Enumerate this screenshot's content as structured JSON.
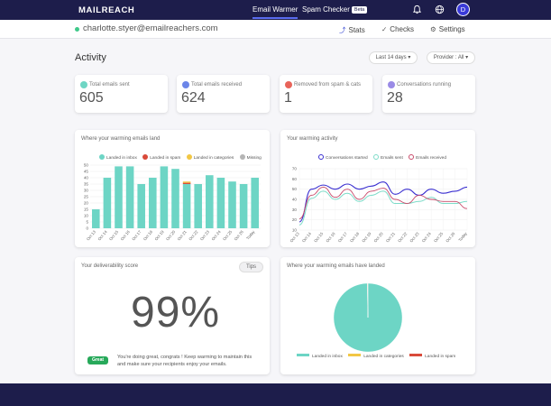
{
  "navbar": {
    "logo": "MAILREACH",
    "email_warmer": "Email Warmer",
    "spam_checker": "Spam Checker",
    "beta": "Beta",
    "avatar_initial": "D",
    "icons": [
      "bell-icon",
      "globe-icon"
    ]
  },
  "subheader": {
    "email": "charlotte.styer@emailreachers.com",
    "tabs": [
      {
        "label": "Stats",
        "icon": "stats-icon"
      },
      {
        "label": "Checks",
        "icon": "checks-icon"
      },
      {
        "label": "Settings",
        "icon": "gear-icon"
      }
    ]
  },
  "activity": {
    "title": "Activity",
    "range": "Last 14 days",
    "provider": "Provider : All"
  },
  "stats": [
    {
      "label": "Total emails sent",
      "value": "605",
      "color": "#6fd6c4"
    },
    {
      "label": "Total emails received",
      "value": "624",
      "color": "#6c86e8"
    },
    {
      "label": "Removed from spam & cats",
      "value": "1",
      "color": "#e8645a"
    },
    {
      "label": "Conversations running",
      "value": "28",
      "color": "#9a8be6"
    }
  ],
  "land_chart": {
    "title": "Where your warming emails land",
    "legend": [
      {
        "name": "Landed in inbox",
        "color": "#6dd5c5"
      },
      {
        "name": "Landed in spam",
        "color": "#d94a3a"
      },
      {
        "name": "Landed in categories",
        "color": "#f2c744"
      },
      {
        "name": "Missing",
        "color": "#b5b5b5"
      }
    ]
  },
  "warming_chart": {
    "title": "Your warming activity",
    "legend": [
      {
        "name": "Conversations started",
        "color": "#3a2fd0"
      },
      {
        "name": "Emails sent",
        "color": "#7ddcc9"
      },
      {
        "name": "Emails received",
        "color": "#c94a6a"
      }
    ]
  },
  "deliverability": {
    "title": "Your deliverability score",
    "tips": "Tips",
    "score": "99%",
    "badge": "Great",
    "message": "You're doing great, congrats ! Keep warming to maintain this and make sure your recipients enjoy your emails."
  },
  "landed_pie": {
    "title": "Where your warming emails have landed",
    "legend": [
      {
        "name": "Landed in inbox",
        "color": "#6dd5c5"
      },
      {
        "name": "Landed in categories",
        "color": "#f2c744"
      },
      {
        "name": "Landed in spam",
        "color": "#d94a3a"
      }
    ]
  },
  "chart_data": [
    {
      "type": "bar",
      "categories": [
        "Oct 13",
        "Oct 14",
        "Oct 15",
        "Oct 16",
        "Oct 17",
        "Oct 18",
        "Oct 19",
        "Oct 20",
        "Oct 21",
        "Oct 22",
        "Oct 23",
        "Oct 24",
        "Oct 25",
        "Oct 26",
        "Today"
      ],
      "series": [
        {
          "name": "Landed in inbox",
          "values": [
            15,
            40,
            49,
            49,
            35,
            40,
            49,
            47,
            35,
            35,
            42,
            40,
            37,
            35,
            40
          ]
        },
        {
          "name": "Landed in spam",
          "values": [
            0,
            0,
            0,
            0,
            0,
            0,
            0,
            0,
            1,
            0,
            0,
            0,
            0,
            0,
            0
          ]
        },
        {
          "name": "Landed in categories",
          "values": [
            0,
            0,
            0,
            0,
            0,
            0,
            0,
            0,
            1,
            0,
            0,
            0,
            0,
            0,
            0
          ]
        },
        {
          "name": "Missing",
          "values": [
            0,
            0,
            0,
            0,
            0,
            0,
            0,
            0,
            0,
            0,
            0,
            0,
            0,
            0,
            0
          ]
        }
      ],
      "yticks": [
        0,
        5,
        10,
        15,
        20,
        25,
        30,
        35,
        40,
        45,
        50
      ],
      "ylim": [
        0,
        50
      ],
      "grid": true,
      "legend_position": "top"
    },
    {
      "type": "line",
      "categories": [
        "Oct 13",
        "Oct 14",
        "Oct 15",
        "Oct 16",
        "Oct 17",
        "Oct 18",
        "Oct 19",
        "Oct 20",
        "Oct 21",
        "Oct 22",
        "Oct 23",
        "Oct 24",
        "Oct 25",
        "Oct 26",
        "Today"
      ],
      "series": [
        {
          "name": "Conversations started",
          "values": [
            18,
            50,
            54,
            50,
            55,
            50,
            53,
            57,
            45,
            50,
            44,
            50,
            46,
            48,
            52
          ]
        },
        {
          "name": "Emails sent",
          "values": [
            15,
            41,
            48,
            40,
            46,
            38,
            44,
            48,
            36,
            36,
            38,
            42,
            36,
            36,
            38
          ]
        },
        {
          "name": "Emails received",
          "values": [
            21,
            44,
            52,
            42,
            50,
            40,
            48,
            51,
            40,
            36,
            44,
            40,
            38,
            38,
            31
          ]
        }
      ],
      "yticks": [
        10,
        20,
        30,
        40,
        50,
        60,
        70
      ],
      "ylim": [
        10,
        70
      ],
      "grid": true,
      "legend_position": "top"
    },
    {
      "type": "pie",
      "labels": [
        "Landed in inbox",
        "Landed in categories",
        "Landed in spam"
      ],
      "values": [
        99.7,
        0.15,
        0.15
      ],
      "legend_position": "bottom"
    }
  ]
}
